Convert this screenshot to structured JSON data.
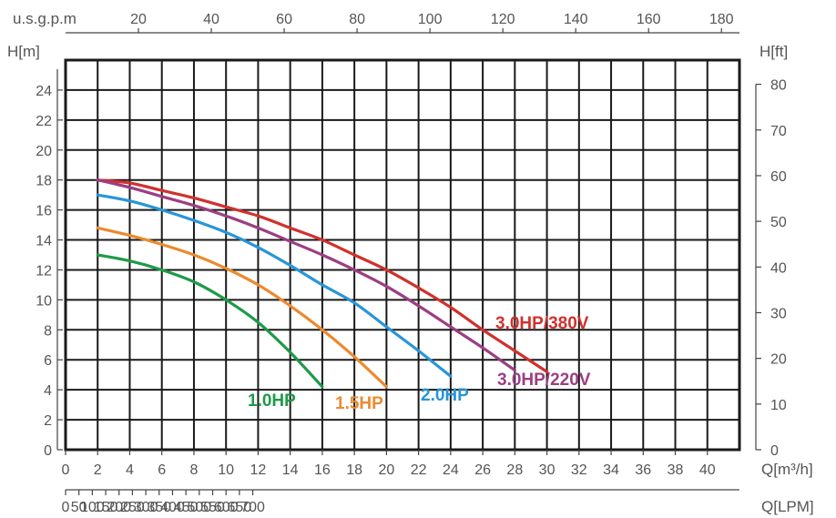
{
  "chart_data": {
    "type": "line",
    "title": "",
    "grid": true,
    "x_axis": {
      "label": "Q[m³/h]",
      "range": [
        0,
        42
      ],
      "tick_step": 2,
      "ticks": [
        "0",
        "2",
        "4",
        "6",
        "8",
        "10",
        "12",
        "14",
        "16",
        "18",
        "20",
        "22",
        "24",
        "26",
        "28",
        "30",
        "32",
        "34",
        "36",
        "38",
        "40"
      ]
    },
    "x2_axis": {
      "label": "Q[LPM]",
      "position": "bottom",
      "ticks": [
        "0",
        "50",
        "100",
        "150",
        "200",
        "250",
        "300",
        "350",
        "400",
        "450",
        "500",
        "550",
        "600",
        "650",
        "700"
      ]
    },
    "x3_axis": {
      "label": "u.s.g.p.m",
      "position": "top",
      "ticks": [
        "20",
        "40",
        "60",
        "80",
        "100",
        "120",
        "140",
        "160",
        "180"
      ]
    },
    "y_axis": {
      "label": "H[m]",
      "range": [
        0,
        26
      ],
      "ticks": [
        "0",
        "2",
        "4",
        "6",
        "8",
        "10",
        "12",
        "14",
        "16",
        "18",
        "20",
        "22",
        "24"
      ]
    },
    "y2_axis": {
      "label": "H[ft]",
      "position": "right",
      "ticks": [
        "0",
        "10",
        "20",
        "30",
        "40",
        "50",
        "60",
        "70",
        "80"
      ]
    },
    "series": [
      {
        "name": "1.0HP",
        "color": "#1e9a48",
        "x": [
          2,
          4,
          6,
          8,
          10,
          12,
          14,
          16
        ],
        "y": [
          13.0,
          12.6,
          12.0,
          11.2,
          10.0,
          8.5,
          6.5,
          4.2
        ]
      },
      {
        "name": "1.5HP",
        "color": "#ec8a2e",
        "x": [
          2,
          4,
          6,
          8,
          10,
          12,
          14,
          16,
          18,
          20
        ],
        "y": [
          14.8,
          14.3,
          13.7,
          13.0,
          12.1,
          11.0,
          9.6,
          8.0,
          6.2,
          4.2
        ]
      },
      {
        "name": "2.0HP",
        "color": "#2895d8",
        "x": [
          2,
          4,
          6,
          8,
          10,
          12,
          14,
          16,
          18,
          20,
          22,
          24
        ],
        "y": [
          17.0,
          16.6,
          16.0,
          15.3,
          14.5,
          13.5,
          12.3,
          11.0,
          9.8,
          8.2,
          6.6,
          4.9
        ]
      },
      {
        "name": "3.0HP/380V",
        "color": "#d0312d",
        "x": [
          2,
          4,
          6,
          8,
          10,
          12,
          14,
          16,
          18,
          20,
          22,
          24,
          26,
          28,
          30
        ],
        "y": [
          18.0,
          17.8,
          17.3,
          16.8,
          16.2,
          15.6,
          14.8,
          14.0,
          13.0,
          12.0,
          10.8,
          9.5,
          8.0,
          6.6,
          5.2
        ]
      },
      {
        "name": "3.0HP/220V",
        "color": "#9b3f82",
        "x": [
          2,
          4,
          6,
          8,
          10,
          12,
          14,
          16,
          18,
          20,
          22,
          24,
          26,
          28
        ],
        "y": [
          18.0,
          17.5,
          16.9,
          16.3,
          15.6,
          14.8,
          13.9,
          13.0,
          12.0,
          10.9,
          9.6,
          8.2,
          6.8,
          5.3
        ]
      }
    ]
  }
}
